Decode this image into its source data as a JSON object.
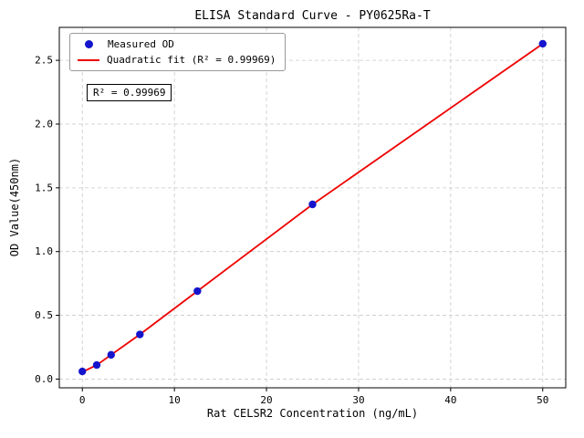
{
  "chart_data": {
    "type": "scatter",
    "title": "ELISA Standard Curve - PY0625Ra-T",
    "xlabel": "Rat CELSR2 Concentration (ng/mL)",
    "ylabel": "OD Value(450nm)",
    "annotation": "R² = 0.99969",
    "r_squared": "0.99969",
    "grid": true,
    "legend_position": "upper left",
    "xlim": [
      -2.5,
      52.5
    ],
    "ylim": [
      -0.0685,
      2.7585
    ],
    "x_ticks": [
      0,
      10,
      20,
      30,
      40,
      50
    ],
    "y_ticks": [
      0.0,
      0.5,
      1.0,
      1.5,
      2.0,
      2.5
    ],
    "series": [
      {
        "name": "Measured OD",
        "type": "scatter",
        "color": "#1414cc",
        "x": [
          0,
          1.5625,
          3.125,
          6.25,
          12.5,
          25,
          50
        ],
        "y": [
          0.06,
          0.11,
          0.19,
          0.35,
          0.69,
          1.37,
          2.63
        ]
      },
      {
        "name": "Quadratic fit (R² = 0.99969)",
        "type": "line",
        "color": "#ee0000",
        "x": [
          0,
          1.5625,
          3.125,
          6.25,
          12.5,
          25,
          50
        ],
        "y": [
          0.055,
          0.11,
          0.19,
          0.35,
          0.69,
          1.37,
          2.63
        ]
      }
    ]
  }
}
